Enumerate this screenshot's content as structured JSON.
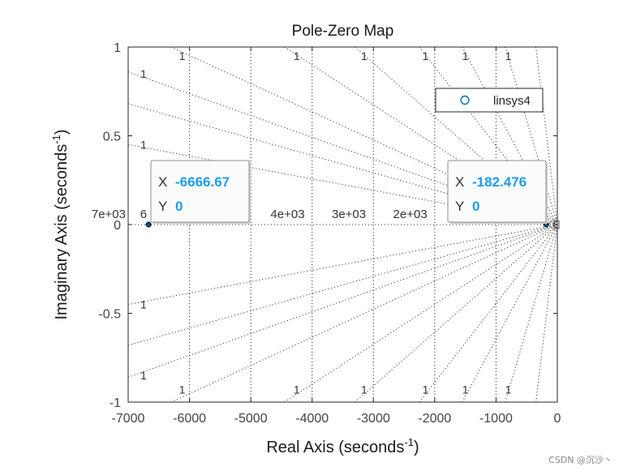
{
  "chart_data": {
    "type": "scatter",
    "title": "Pole-Zero Map",
    "xlabel": {
      "text": "Real Axis (seconds",
      "sup": "-1",
      "close": ")"
    },
    "ylabel": {
      "text": "Imaginary Axis (seconds",
      "sup": "-1",
      "close": ")"
    },
    "xlim": [
      -7000,
      0
    ],
    "ylim": [
      -1,
      1
    ],
    "x_ticks": [
      -7000,
      -6000,
      -5000,
      -4000,
      -3000,
      -2000,
      -1000,
      0
    ],
    "x_tick_labels": [
      "-7000",
      "-6000",
      "-5000",
      "-4000",
      "-3000",
      "-2000",
      "-1000",
      "0"
    ],
    "y_ticks": [
      -1,
      -0.5,
      0,
      0.5,
      1
    ],
    "y_tick_labels": [
      "-1",
      "-0.5",
      "0",
      "0.5",
      "1"
    ],
    "grid": true,
    "legend": {
      "position": "top-right",
      "entries": [
        "linsys4"
      ]
    },
    "series": [
      {
        "name": "linsys4",
        "marker": "x",
        "color": "#0072BD",
        "points": [
          {
            "x": -6666.67,
            "y": 0
          },
          {
            "x": -182.476,
            "y": 0
          }
        ]
      }
    ],
    "damping_grid_labels": [
      {
        "x": -6750,
        "y": 0.85,
        "text": "1"
      },
      {
        "x": -6750,
        "y": 0.45,
        "text": "1"
      },
      {
        "x": -6750,
        "y": -0.45,
        "text": "1"
      },
      {
        "x": -6750,
        "y": -0.85,
        "text": "1"
      },
      {
        "x": -6120,
        "y": 0.95,
        "text": "1"
      },
      {
        "x": -4250,
        "y": 0.95,
        "text": "1"
      },
      {
        "x": -3150,
        "y": 0.95,
        "text": "1"
      },
      {
        "x": -2150,
        "y": 0.95,
        "text": "1"
      },
      {
        "x": -1500,
        "y": 0.95,
        "text": "1"
      },
      {
        "x": -800,
        "y": 0.95,
        "text": "1"
      },
      {
        "x": -6120,
        "y": -0.93,
        "text": "1"
      },
      {
        "x": -4250,
        "y": -0.93,
        "text": "1"
      },
      {
        "x": -3150,
        "y": -0.93,
        "text": "1"
      },
      {
        "x": -2150,
        "y": -0.93,
        "text": "1"
      },
      {
        "x": -1500,
        "y": -0.93,
        "text": "1"
      },
      {
        "x": -800,
        "y": -0.93,
        "text": "1"
      }
    ],
    "freq_grid_labels": [
      {
        "x": -7000,
        "y": 0.06,
        "text": "7e+03",
        "anchor": "end"
      },
      {
        "x": -6750,
        "y": 0.06,
        "text": "6",
        "anchor": "middle"
      },
      {
        "x": -4400,
        "y": 0.06,
        "text": "4e+03",
        "anchor": "middle"
      },
      {
        "x": -3400,
        "y": 0.06,
        "text": "3e+03",
        "anchor": "middle"
      },
      {
        "x": -2400,
        "y": 0.06,
        "text": "2e+03",
        "anchor": "middle"
      }
    ],
    "datatips": [
      {
        "x_value": "-6666.67",
        "y_value": "0",
        "x_label": "X",
        "y_label": "Y",
        "anchor_x": -6666.67,
        "anchor_y": 0
      },
      {
        "x_value": "-182.476",
        "y_value": "0",
        "x_label": "X",
        "y_label": "Y",
        "anchor_x": -182.476,
        "anchor_y": 0
      }
    ]
  },
  "watermark": "CSDN @沉沙丶"
}
